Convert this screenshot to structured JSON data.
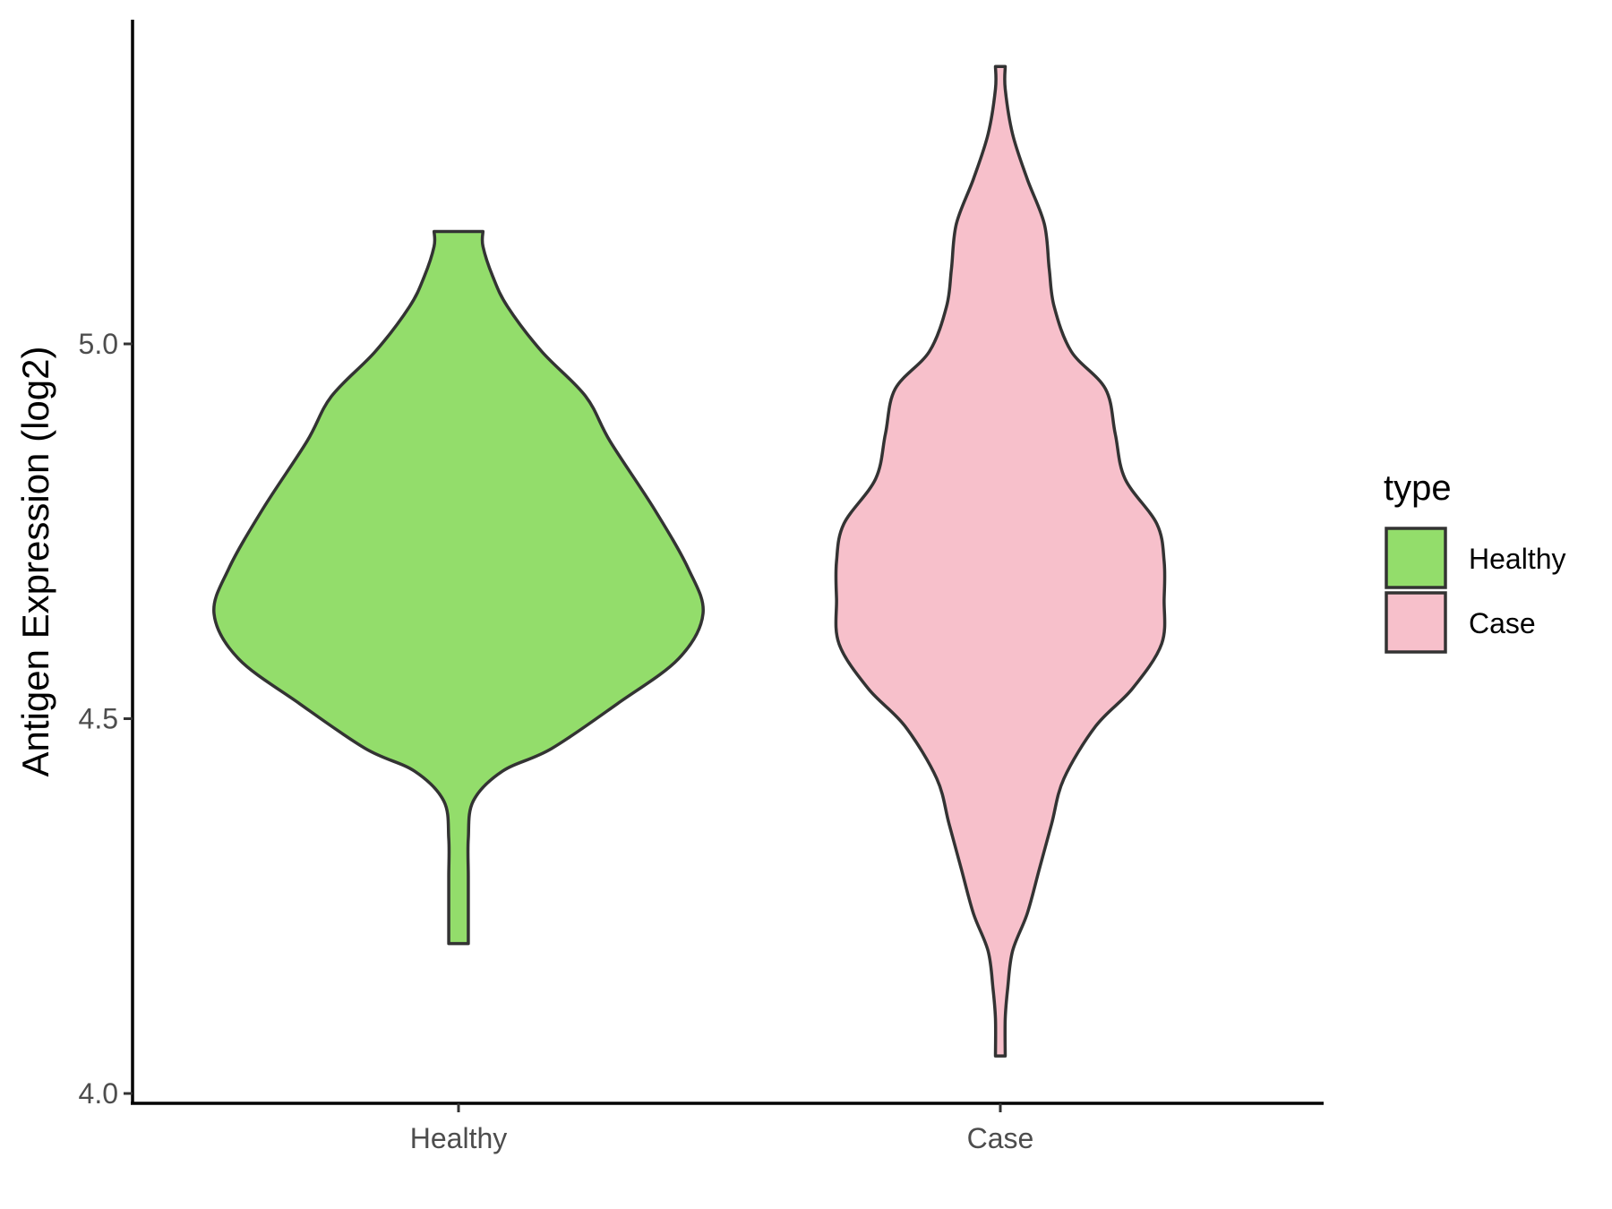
{
  "chart_data": {
    "type": "violin",
    "title": "",
    "xlabel": "",
    "ylabel": "Antigen Expression (log2)",
    "ylim": [
      4.0,
      5.45
    ],
    "yticks": [
      "4.0",
      "4.5",
      "5.0"
    ],
    "categories": [
      "Healthy",
      "Case"
    ],
    "series": [
      {
        "name": "Healthy",
        "color": "#93DD6B",
        "min": 4.2,
        "max": 5.15,
        "density_profile": [
          [
            4.2,
            0.04
          ],
          [
            4.24,
            0.04
          ],
          [
            4.29,
            0.04
          ],
          [
            4.34,
            0.04
          ],
          [
            4.39,
            0.06
          ],
          [
            4.43,
            0.18
          ],
          [
            4.46,
            0.38
          ],
          [
            4.52,
            0.65
          ],
          [
            4.58,
            0.9
          ],
          [
            4.64,
            1.0
          ],
          [
            4.7,
            0.94
          ],
          [
            4.78,
            0.8
          ],
          [
            4.87,
            0.62
          ],
          [
            4.93,
            0.52
          ],
          [
            4.99,
            0.34
          ],
          [
            5.05,
            0.2
          ],
          [
            5.09,
            0.14
          ],
          [
            5.13,
            0.1
          ],
          [
            5.15,
            0.1
          ]
        ]
      },
      {
        "name": "Case",
        "color": "#F7C0CB",
        "min": 4.05,
        "max": 5.37,
        "density_profile": [
          [
            4.05,
            0.02
          ],
          [
            4.1,
            0.02
          ],
          [
            4.14,
            0.03
          ],
          [
            4.19,
            0.05
          ],
          [
            4.24,
            0.11
          ],
          [
            4.3,
            0.16
          ],
          [
            4.36,
            0.21
          ],
          [
            4.42,
            0.26
          ],
          [
            4.49,
            0.39
          ],
          [
            4.54,
            0.54
          ],
          [
            4.6,
            0.66
          ],
          [
            4.66,
            0.67
          ],
          [
            4.71,
            0.67
          ],
          [
            4.76,
            0.64
          ],
          [
            4.82,
            0.51
          ],
          [
            4.88,
            0.47
          ],
          [
            4.94,
            0.43
          ],
          [
            4.99,
            0.29
          ],
          [
            5.05,
            0.22
          ],
          [
            5.1,
            0.2
          ],
          [
            5.16,
            0.18
          ],
          [
            5.22,
            0.11
          ],
          [
            5.28,
            0.05
          ],
          [
            5.34,
            0.02
          ],
          [
            5.37,
            0.02
          ]
        ]
      }
    ],
    "legend": {
      "title": "type",
      "position": "right",
      "entries": [
        {
          "label": "Healthy",
          "color": "#93DD6B"
        },
        {
          "label": "Case",
          "color": "#F7C0CB"
        }
      ]
    },
    "grid": false
  }
}
